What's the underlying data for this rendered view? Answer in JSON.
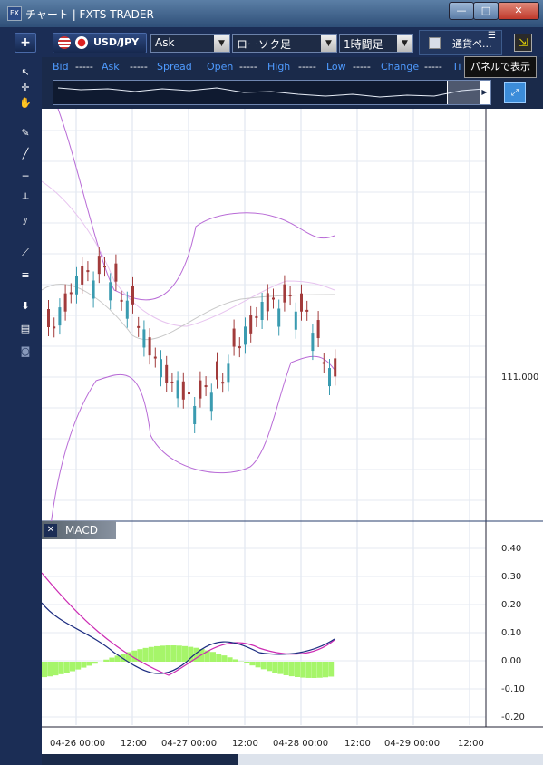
{
  "window": {
    "title": "チャート | FXTS TRADER",
    "app_icon": "FX"
  },
  "toolbar": {
    "add_label": "+",
    "symbol": "USD/JPY",
    "price_type": "Ask",
    "chart_type": "ローソク足",
    "timeframe": "1時間足",
    "pairs_label": "通貨ペ...",
    "tooltip": "パネルで表示"
  },
  "info_row": {
    "bid_label": "Bid",
    "bid_value": "-----",
    "ask_label": "Ask",
    "ask_value": "-----",
    "spread_label": "Spread",
    "open_label": "Open",
    "open_value": "-----",
    "high_label": "High",
    "high_value": "-----",
    "low_label": "Low",
    "low_value": "-----",
    "change_label": "Change",
    "change_value": "-----",
    "time_label": "Ti"
  },
  "left_tools": [
    "cursor-icon",
    "crosshair-icon",
    "pan-icon",
    "pencil-icon",
    "trendline-icon",
    "horizontal-line-icon",
    "vertical-line-icon",
    "channel-icon",
    "fan-icon",
    "fibonacci-icon",
    "download-icon",
    "list-icon",
    "camera-icon"
  ],
  "chart": {
    "price_label": "111.000",
    "macd_title": "MACD",
    "macd_ticks": [
      "0.40",
      "0.30",
      "0.20",
      "0.10",
      "0.00",
      "-0.10",
      "-0.20"
    ],
    "x_labels": [
      "04-26 00:00",
      "12:00",
      "04-27 00:00",
      "12:00",
      "04-28 00:00",
      "12:00",
      "04-29 00:00",
      "12:00"
    ],
    "candle_colors": {
      "up": "#3a9bb0",
      "down": "#a23b3b"
    },
    "band_color": "#b86ad6"
  }
}
